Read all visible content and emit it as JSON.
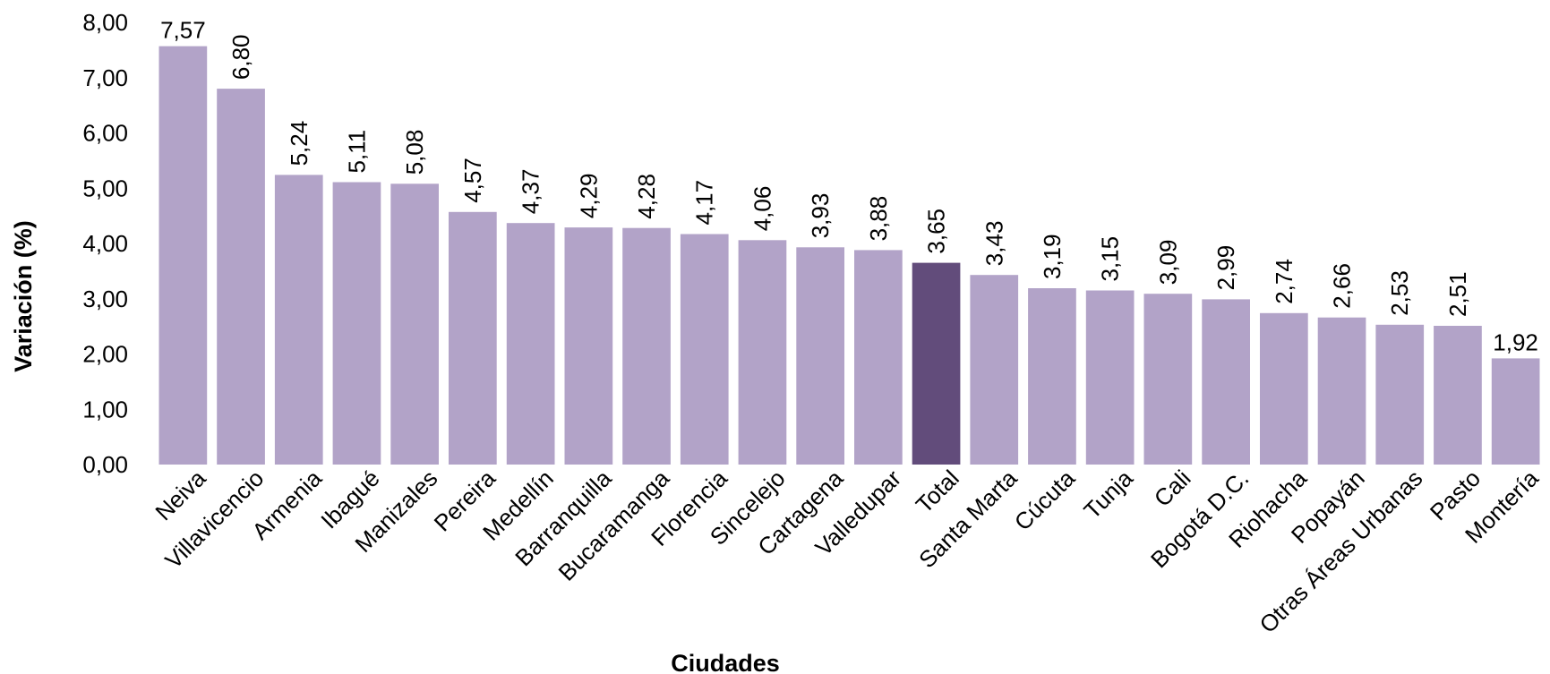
{
  "chart_data": {
    "type": "bar",
    "categories": [
      "Neiva",
      "Villavicencio",
      "Armenia",
      "Ibagué",
      "Manizales",
      "Pereira",
      "Medellín",
      "Barranquilla",
      "Bucaramanga",
      "Florencia",
      "Sincelejo",
      "Cartagena",
      "Valledupar",
      "Total",
      "Santa Marta",
      "Cúcuta",
      "Tunja",
      "Cali",
      "Bogotá D.C.",
      "Riohacha",
      "Popayán",
      "Otras Áreas Urbanas",
      "Pasto",
      "Montería"
    ],
    "values": [
      7.57,
      6.8,
      5.24,
      5.11,
      5.08,
      4.57,
      4.37,
      4.29,
      4.28,
      4.17,
      4.06,
      3.93,
      3.88,
      3.65,
      3.43,
      3.19,
      3.15,
      3.09,
      2.99,
      2.74,
      2.66,
      2.53,
      2.51,
      1.92
    ],
    "data_labels": [
      "7,57",
      "6,80",
      "5,24",
      "5,11",
      "5,08",
      "4,57",
      "4,37",
      "4,29",
      "4,28",
      "4,17",
      "4,06",
      "3,93",
      "3,88",
      "3,65",
      "3,43",
      "3,19",
      "3,15",
      "3,09",
      "2,99",
      "2,74",
      "2,66",
      "2,53",
      "2,51",
      "1,92"
    ],
    "y_ticks": [
      0,
      1,
      2,
      3,
      4,
      5,
      6,
      7,
      8
    ],
    "y_tick_labels": [
      "0,00",
      "1,00",
      "2,00",
      "3,00",
      "4,00",
      "5,00",
      "6,00",
      "7,00",
      "8,00"
    ],
    "ylim": [
      0,
      8
    ],
    "xlabel": "Ciudades",
    "ylabel": "Variación (%)",
    "highlight_category": "Total",
    "grid": false,
    "legend": "none",
    "colors": {
      "bar": "#b2a3c8",
      "highlight": "#624c7b"
    }
  }
}
